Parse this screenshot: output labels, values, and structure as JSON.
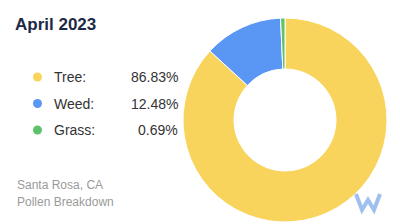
{
  "chart_data": {
    "type": "pie",
    "title": "April 2023",
    "categories": [
      "Tree:",
      "Weed:",
      "Grass:"
    ],
    "values": [
      86.83,
      12.48,
      0.69
    ],
    "value_labels": [
      "86.83%",
      "12.48%",
      "0.69%"
    ],
    "colors": [
      "#f8d45c",
      "#5a97f5",
      "#5ec26a"
    ],
    "legend": "left",
    "data_labels": false,
    "annotations": [
      "Santa Rosa, CA",
      "Pollen Breakdown"
    ]
  }
}
